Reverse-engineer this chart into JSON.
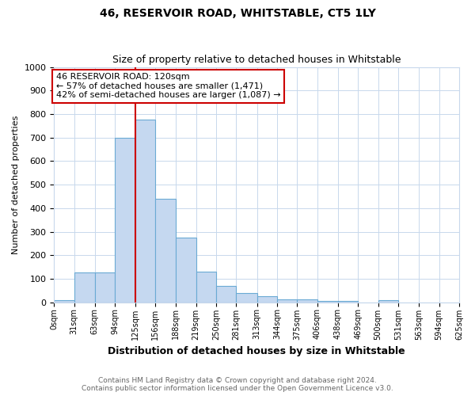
{
  "title1": "46, RESERVOIR ROAD, WHITSTABLE, CT5 1LY",
  "title2": "Size of property relative to detached houses in Whitstable",
  "xlabel": "Distribution of detached houses by size in Whitstable",
  "ylabel": "Number of detached properties",
  "footnote1": "Contains HM Land Registry data © Crown copyright and database right 2024.",
  "footnote2": "Contains public sector information licensed under the Open Government Licence v3.0.",
  "bin_edges": [
    0,
    31,
    63,
    94,
    125,
    156,
    188,
    219,
    250,
    281,
    313,
    344,
    375,
    406,
    438,
    469,
    500,
    531,
    563,
    594,
    625
  ],
  "bar_heights": [
    8,
    128,
    128,
    700,
    775,
    440,
    275,
    130,
    70,
    38,
    25,
    12,
    12,
    7,
    5,
    0,
    8,
    0,
    0,
    0
  ],
  "bar_color": "#c5d8f0",
  "bar_edge_color": "#6aaad4",
  "vline_x": 125,
  "vline_color": "#cc0000",
  "ylim": [
    0,
    1000
  ],
  "yticks": [
    0,
    100,
    200,
    300,
    400,
    500,
    600,
    700,
    800,
    900,
    1000
  ],
  "annotation_text": "46 RESERVOIR ROAD: 120sqm\n← 57% of detached houses are smaller (1,471)\n42% of semi-detached houses are larger (1,087) →",
  "annotation_box_color": "#ffffff",
  "annotation_box_edge": "#cc0000",
  "background_color": "#ffffff",
  "grid_color": "#c8d8ec"
}
